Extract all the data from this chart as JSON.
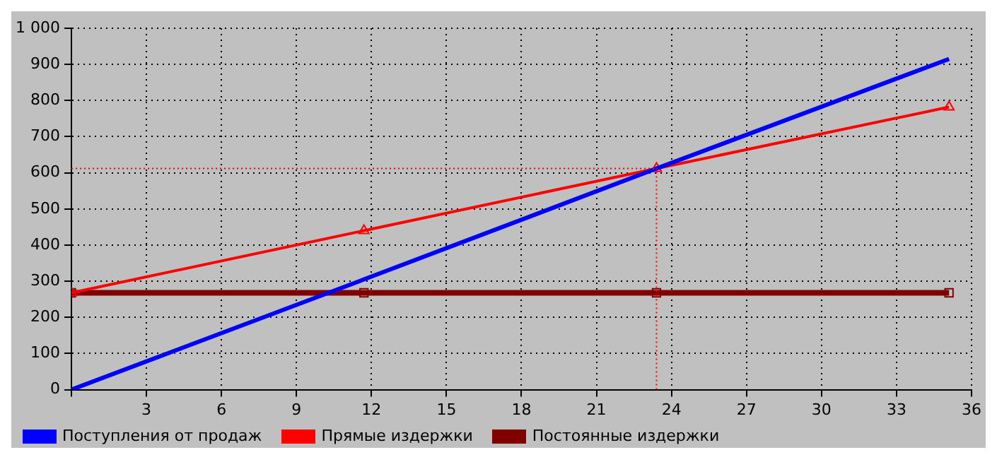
{
  "chart_data": {
    "type": "line",
    "x": [
      0,
      11.7,
      23.4,
      35.1
    ],
    "series": [
      {
        "name": "Поступления от продаж",
        "color": "#0000ff",
        "values": [
          0,
          305,
          612,
          915
        ],
        "marker": "none"
      },
      {
        "name": "Прямые издержки",
        "color": "#ff0000",
        "values": [
          268,
          440,
          612,
          782
        ],
        "marker": "triangle"
      },
      {
        "name": "Постоянные издержки",
        "color": "#800000",
        "values": [
          268,
          268,
          268,
          268
        ],
        "marker": "square"
      }
    ],
    "xlim": [
      0,
      36
    ],
    "xticks": [
      {
        "value": 0,
        "label": null
      },
      3,
      6,
      9,
      12,
      15,
      18,
      21,
      24,
      27,
      30,
      33,
      36
    ],
    "ylim": [
      0,
      1000
    ],
    "yticks": [
      0,
      100,
      200,
      300,
      400,
      500,
      600,
      700,
      800,
      900,
      {
        "value": 1000,
        "label": "1 000"
      }
    ],
    "ref_lines": [
      {
        "axis": "x",
        "value": 23.4,
        "color": "#ff0000",
        "line_style": "dotted"
      },
      {
        "axis": "y",
        "value": 612,
        "color": "#ff0000",
        "line_style": "dotted"
      }
    ],
    "grid": true,
    "legend": "bottom",
    "line_style": "solid"
  }
}
